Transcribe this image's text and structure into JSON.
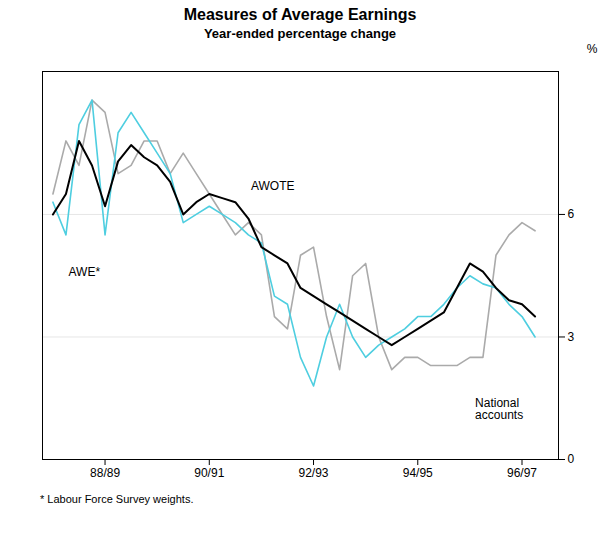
{
  "chart_data": {
    "type": "line",
    "title": "Measures of Average Earnings",
    "subtitle": "Year-ended percentage change",
    "footnote": "* Labour Force Survey weights.",
    "ylabel": "%",
    "y2label": "%",
    "x": [
      1987.5,
      1987.75,
      1988.0,
      1988.25,
      1988.5,
      1988.75,
      1989.0,
      1989.25,
      1989.5,
      1989.75,
      1990.0,
      1990.25,
      1990.5,
      1990.75,
      1991.0,
      1991.25,
      1991.5,
      1991.75,
      1992.0,
      1992.25,
      1992.5,
      1992.75,
      1993.0,
      1993.25,
      1993.5,
      1993.75,
      1994.0,
      1994.25,
      1994.5,
      1994.75,
      1995.0,
      1995.25,
      1995.5,
      1995.75,
      1996.0,
      1996.25,
      1996.5,
      1996.75
    ],
    "series": [
      {
        "color": "#aaaaaa",
        "values": [
          6.5,
          7.8,
          7.2,
          8.8,
          8.5,
          7.0,
          7.2,
          7.8,
          7.8,
          7.0,
          7.5,
          7.0,
          6.5,
          6.0,
          5.5,
          5.8,
          5.5,
          3.5,
          3.2,
          5.0,
          5.2,
          3.5,
          2.2,
          4.5,
          4.8,
          3.0,
          2.2,
          2.5,
          2.5,
          2.3,
          2.3,
          2.3,
          2.5,
          2.5,
          5.0,
          5.5,
          5.8,
          5.6
        ]
      },
      {
        "color": "#4ecee0",
        "values": [
          6.3,
          5.5,
          8.2,
          8.8,
          5.5,
          8.0,
          8.5,
          8.0,
          7.5,
          7.0,
          5.8,
          6.0,
          6.2,
          6.0,
          5.8,
          5.5,
          5.3,
          4.0,
          3.8,
          2.5,
          1.8,
          3.0,
          3.8,
          3.0,
          2.5,
          2.8,
          3.0,
          3.2,
          3.5,
          3.5,
          3.8,
          4.2,
          4.5,
          4.3,
          4.2,
          3.8,
          3.5,
          3.0
        ]
      },
      {
        "color": "#000000",
        "values": [
          6.0,
          6.5,
          7.8,
          7.2,
          6.2,
          7.3,
          7.7,
          7.4,
          7.2,
          6.8,
          6.0,
          6.3,
          6.5,
          6.4,
          6.3,
          5.9,
          5.2,
          5.0,
          4.8,
          4.2,
          4.0,
          3.8,
          3.6,
          3.4,
          3.2,
          3.0,
          2.8,
          3.0,
          3.2,
          3.4,
          3.6,
          4.2,
          4.8,
          4.6,
          4.2,
          3.9,
          3.8,
          3.5
        ]
      }
    ],
    "xlim": [
      1987.3,
      1997.2
    ],
    "xticks": [
      {
        "value": 1988.5,
        "label": "88/89"
      },
      {
        "value": 1990.5,
        "label": "90/91"
      },
      {
        "value": 1992.5,
        "label": "92/93"
      },
      {
        "value": 1994.5,
        "label": "94/95"
      },
      {
        "value": 1996.5,
        "label": "96/97"
      }
    ],
    "ylim": [
      0,
      9.5
    ],
    "yticks": [
      0,
      3,
      6
    ],
    "y2lim": [
      0,
      9.5
    ],
    "y2ticks": [
      0,
      3,
      6
    ],
    "grid": true,
    "annotations": [
      {
        "text": "AWOTE",
        "x": 1991.3,
        "y": 6.6
      },
      {
        "text": "AWE*",
        "x": 1987.8,
        "y": 4.5
      },
      {
        "text": "National\naccounts",
        "x": 1995.6,
        "y": 1.5
      }
    ]
  }
}
